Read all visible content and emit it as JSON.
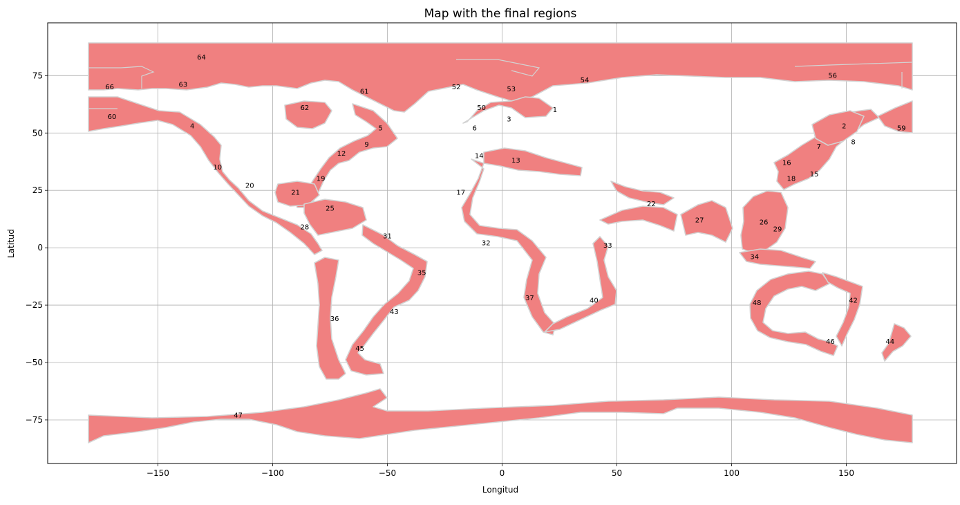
{
  "figure": {
    "title": "Map with the final regions",
    "xlabel": "Longitud",
    "ylabel": "Latitud"
  },
  "chart_data": {
    "type": "map",
    "title": "Map with the final regions",
    "xlabel": "Longitud",
    "ylabel": "Latitud",
    "xlim": [
      -198,
      198
    ],
    "ylim": [
      -94,
      98
    ],
    "xticks": [
      -150,
      -100,
      -50,
      0,
      50,
      100,
      150
    ],
    "yticks": [
      75,
      50,
      25,
      0,
      -25,
      -50,
      -75
    ],
    "grid": true,
    "region_color": "#f08080",
    "boundary_color": "#d3d3d3",
    "regions": [
      {
        "label": "1",
        "lon": 23,
        "lat": 60
      },
      {
        "label": "2",
        "lon": 149,
        "lat": 53
      },
      {
        "label": "3",
        "lon": 3,
        "lat": 56
      },
      {
        "label": "4",
        "lon": -135,
        "lat": 53
      },
      {
        "label": "5",
        "lon": -53,
        "lat": 52
      },
      {
        "label": "6",
        "lon": -12,
        "lat": 52
      },
      {
        "label": "7",
        "lon": 138,
        "lat": 44
      },
      {
        "label": "8",
        "lon": 153,
        "lat": 46
      },
      {
        "label": "9",
        "lon": -59,
        "lat": 45
      },
      {
        "label": "10",
        "lon": -124,
        "lat": 35
      },
      {
        "label": "12",
        "lon": -70,
        "lat": 41
      },
      {
        "label": "13",
        "lon": 6,
        "lat": 38
      },
      {
        "label": "14",
        "lon": -10,
        "lat": 40
      },
      {
        "label": "15",
        "lon": 136,
        "lat": 32
      },
      {
        "label": "16",
        "lon": 124,
        "lat": 37
      },
      {
        "label": "17",
        "lon": -18,
        "lat": 24
      },
      {
        "label": "18",
        "lon": 126,
        "lat": 30
      },
      {
        "label": "19",
        "lon": -79,
        "lat": 30
      },
      {
        "label": "20",
        "lon": -110,
        "lat": 27
      },
      {
        "label": "21",
        "lon": -90,
        "lat": 24
      },
      {
        "label": "22",
        "lon": 65,
        "lat": 19
      },
      {
        "label": "25",
        "lon": -75,
        "lat": 17
      },
      {
        "label": "26",
        "lon": 114,
        "lat": 11
      },
      {
        "label": "27",
        "lon": 86,
        "lat": 12
      },
      {
        "label": "28",
        "lon": -86,
        "lat": 9
      },
      {
        "label": "29",
        "lon": 120,
        "lat": 8
      },
      {
        "label": "31",
        "lon": -50,
        "lat": 5
      },
      {
        "label": "32",
        "lon": -7,
        "lat": 2
      },
      {
        "label": "33",
        "lon": 46,
        "lat": 1
      },
      {
        "label": "34",
        "lon": 110,
        "lat": -4
      },
      {
        "label": "35",
        "lon": -35,
        "lat": -11
      },
      {
        "label": "36",
        "lon": -73,
        "lat": -31
      },
      {
        "label": "37",
        "lon": 12,
        "lat": -22
      },
      {
        "label": "40",
        "lon": 40,
        "lat": -23
      },
      {
        "label": "42",
        "lon": 153,
        "lat": -23
      },
      {
        "label": "43",
        "lon": -47,
        "lat": -28
      },
      {
        "label": "44",
        "lon": 169,
        "lat": -41
      },
      {
        "label": "45",
        "lon": -62,
        "lat": -44
      },
      {
        "label": "46",
        "lon": 143,
        "lat": -41
      },
      {
        "label": "47",
        "lon": -115,
        "lat": -73
      },
      {
        "label": "48",
        "lon": 111,
        "lat": -24
      },
      {
        "label": "50",
        "lon": -9,
        "lat": 61
      },
      {
        "label": "52",
        "lon": -20,
        "lat": 70
      },
      {
        "label": "53",
        "lon": 4,
        "lat": 69
      },
      {
        "label": "54",
        "lon": 36,
        "lat": 73
      },
      {
        "label": "56",
        "lon": 144,
        "lat": 75
      },
      {
        "label": "59",
        "lon": 174,
        "lat": 52
      },
      {
        "label": "60",
        "lon": -170,
        "lat": 57
      },
      {
        "label": "61",
        "lon": -60,
        "lat": 68
      },
      {
        "label": "62",
        "lon": -86,
        "lat": 61
      },
      {
        "label": "63",
        "lon": -139,
        "lat": 71
      },
      {
        "label": "64",
        "lon": -131,
        "lat": 83
      },
      {
        "label": "66",
        "lon": -171,
        "lat": 70
      }
    ]
  }
}
